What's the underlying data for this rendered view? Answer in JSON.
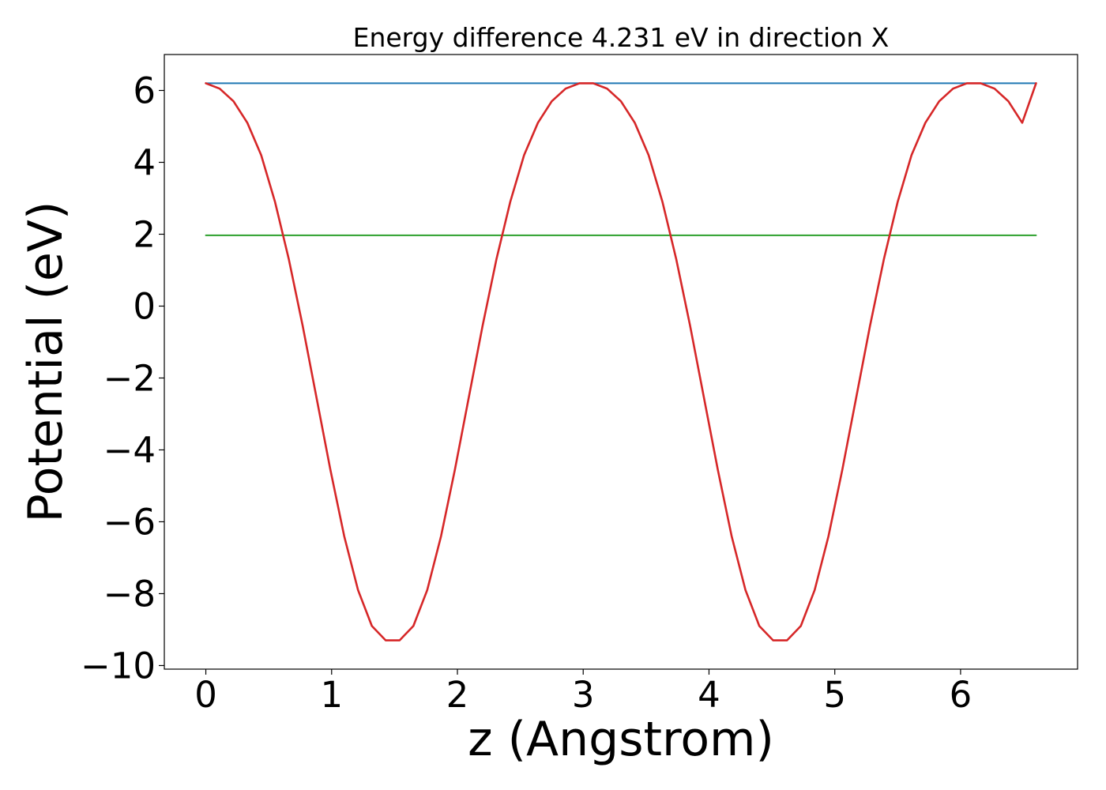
{
  "chart_data": {
    "type": "line",
    "title": "Energy difference 4.231 eV in direction X",
    "xlabel": "z (Angstrom)",
    "ylabel": "Potential (eV)",
    "xlim": [
      -0.33,
      6.93
    ],
    "ylim": [
      -10.1,
      7.0
    ],
    "x_ticks": [
      0,
      1,
      2,
      3,
      4,
      5,
      6
    ],
    "y_ticks": [
      6,
      4,
      2,
      0,
      -2,
      -4,
      -6,
      -8,
      -10
    ],
    "x_tick_labels": [
      "0",
      "1",
      "2",
      "3",
      "4",
      "5",
      "6"
    ],
    "y_tick_labels": [
      "6",
      "4",
      "2",
      "0",
      "−2",
      "−4",
      "−6",
      "−8",
      "−10"
    ],
    "grid": false,
    "legend": "none",
    "series": [
      {
        "color": "#d62728",
        "kind": "curve",
        "x": [
          0.0,
          0.11,
          0.22,
          0.33,
          0.44,
          0.55,
          0.66,
          0.77,
          0.88,
          0.99,
          1.1,
          1.21,
          1.32,
          1.43,
          1.54,
          1.65,
          1.76,
          1.87,
          1.98,
          2.09,
          2.2,
          2.31,
          2.42,
          2.53,
          2.64,
          2.75,
          2.86,
          2.97,
          3.08,
          3.19,
          3.3,
          3.41,
          3.52,
          3.63,
          3.74,
          3.85,
          3.96,
          4.07,
          4.18,
          4.29,
          4.4,
          4.51,
          4.62,
          4.73,
          4.84,
          4.95,
          5.06,
          5.17,
          5.28,
          5.39,
          5.5,
          5.61,
          5.72,
          5.83,
          5.94,
          6.05,
          6.16,
          6.27,
          6.38,
          6.49,
          6.6
        ],
        "y": [
          6.2,
          6.05,
          5.7,
          5.1,
          4.2,
          2.9,
          1.3,
          -0.55,
          -2.55,
          -4.55,
          -6.4,
          -7.9,
          -8.9,
          -9.3,
          -9.3,
          -8.9,
          -7.9,
          -6.4,
          -4.55,
          -2.55,
          -0.55,
          1.3,
          2.9,
          4.2,
          5.1,
          5.7,
          6.05,
          6.2,
          6.2,
          6.05,
          5.7,
          5.1,
          4.2,
          2.9,
          1.3,
          -0.55,
          -2.55,
          -4.55,
          -6.4,
          -7.9,
          -8.9,
          -9.3,
          -9.3,
          -8.9,
          -7.9,
          -6.4,
          -4.55,
          -2.55,
          -0.55,
          1.3,
          2.9,
          4.2,
          5.1,
          5.7,
          6.05,
          6.2,
          6.2,
          6.05,
          5.7,
          5.1,
          6.2
        ]
      },
      {
        "color": "#1f77b4",
        "kind": "flat",
        "x": [
          0.0,
          6.6
        ],
        "y": [
          6.2,
          6.2
        ]
      },
      {
        "color": "#2ca02c",
        "kind": "flat",
        "x": [
          0.0,
          6.6
        ],
        "y": [
          1.97,
          1.97
        ]
      }
    ]
  }
}
